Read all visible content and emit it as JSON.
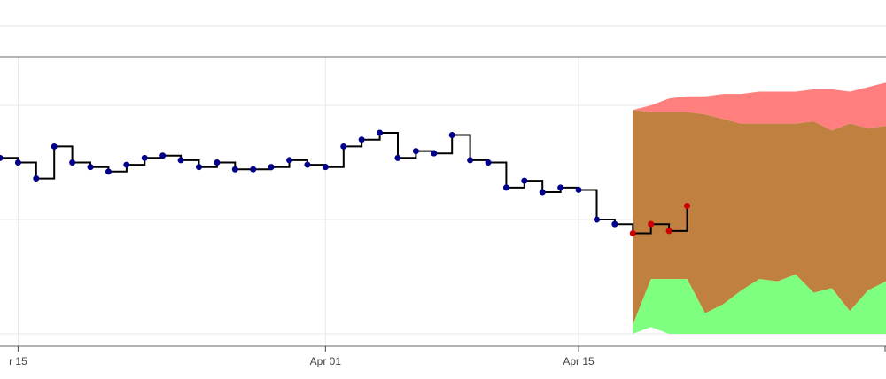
{
  "chart_data": {
    "type": "line",
    "title": "",
    "xlabel": "",
    "ylabel": "",
    "x_axis": {
      "type": "date",
      "range": [
        "2024-03-14",
        "2024-05-02"
      ],
      "ticks": [
        {
          "date": "2024-03-15",
          "label": "r 15"
        },
        {
          "date": "2024-04-01",
          "label": "Apr 01"
        },
        {
          "date": "2024-04-15",
          "label": "Apr 15"
        }
      ]
    },
    "y_axis": {
      "range": [
        0,
        10
      ],
      "show_tick_labels": false
    },
    "grid": true,
    "legend": "none",
    "colors": {
      "actual": "#000000",
      "actual_markers": "#00008b",
      "forecast_markers": "#cc0000",
      "upper_band": "#ff7f7f",
      "middle_band": "#bf8040",
      "lower_band": "#7fff7f"
    },
    "series": [
      {
        "role": "actual",
        "line_shape": "hv",
        "x": [
          "2024-03-14",
          "2024-03-15",
          "2024-03-16",
          "2024-03-17",
          "2024-03-18",
          "2024-03-19",
          "2024-03-20",
          "2024-03-21",
          "2024-03-22",
          "2024-03-23",
          "2024-03-24",
          "2024-03-25",
          "2024-03-26",
          "2024-03-27",
          "2024-03-28",
          "2024-03-29",
          "2024-03-30",
          "2024-03-31",
          "2024-04-01",
          "2024-04-02",
          "2024-04-03",
          "2024-04-04",
          "2024-04-05",
          "2024-04-06",
          "2024-04-07",
          "2024-04-08",
          "2024-04-09",
          "2024-04-10",
          "2024-04-11",
          "2024-04-12",
          "2024-04-13",
          "2024-04-14",
          "2024-04-15",
          "2024-04-16",
          "2024-04-17"
        ],
        "y": [
          7.7,
          7.5,
          6.8,
          8.2,
          7.5,
          7.3,
          7.1,
          7.4,
          7.7,
          7.8,
          7.6,
          7.3,
          7.5,
          7.2,
          7.2,
          7.3,
          7.6,
          7.4,
          7.3,
          8.2,
          8.5,
          8.8,
          7.7,
          8.0,
          7.9,
          8.7,
          7.6,
          7.5,
          6.4,
          6.7,
          6.2,
          6.4,
          6.3,
          5.0,
          4.8
        ],
        "markers": "x"
      },
      {
        "role": "forecast",
        "line_shape": "hv",
        "x": [
          "2024-04-18",
          "2024-04-19",
          "2024-04-20",
          "2024-04-21"
        ],
        "y": [
          4.4,
          4.8,
          4.5,
          5.6
        ],
        "markers": "x"
      }
    ],
    "bands": {
      "x": [
        "2024-04-18",
        "2024-04-19",
        "2024-04-20",
        "2024-04-21",
        "2024-04-22",
        "2024-04-23",
        "2024-04-24",
        "2024-04-25",
        "2024-04-26",
        "2024-04-27",
        "2024-04-28",
        "2024-04-29",
        "2024-04-30",
        "2024-05-01",
        "2024-05-02"
      ],
      "upper": [
        9.8,
        10.0,
        10.3,
        10.4,
        10.4,
        10.5,
        10.5,
        10.6,
        10.6,
        10.6,
        10.7,
        10.7,
        10.6,
        10.8,
        11.0
      ],
      "middle_top": [
        9.8,
        9.7,
        9.7,
        9.7,
        9.6,
        9.4,
        9.2,
        9.2,
        9.2,
        9.2,
        9.3,
        8.9,
        9.2,
        9.0,
        9.1
      ],
      "middle_bottom": [
        0.4,
        2.4,
        2.4,
        2.4,
        0.9,
        1.3,
        1.9,
        2.4,
        2.3,
        2.6,
        1.8,
        2.0,
        1.0,
        1.9,
        2.3
      ],
      "lower": [
        0.0,
        0.3,
        0.0,
        0.0,
        0.0,
        0.0,
        0.0,
        0.0,
        0.0,
        0.0,
        0.0,
        0.0,
        0.0,
        0.0,
        0.0
      ]
    }
  }
}
